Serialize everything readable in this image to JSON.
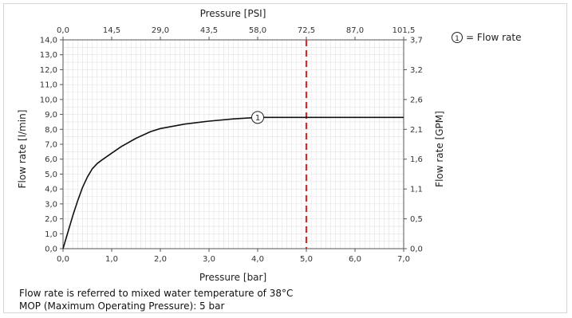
{
  "chart_data": {
    "type": "line",
    "xlabel": "Pressure [bar]",
    "x2label": "Pressure [PSI]",
    "ylabel": "Flow rate [l/min]",
    "y2label": "Flow rate [GPM]",
    "xlim": [
      0,
      7
    ],
    "ylim": [
      0,
      14
    ],
    "x_ticks": [
      "0,0",
      "1,0",
      "2,0",
      "3,0",
      "4,0",
      "5,0",
      "6,0",
      "7,0"
    ],
    "x2_ticks": [
      "0,0",
      "14,5",
      "29,0",
      "43,5",
      "58,0",
      "72,5",
      "87,0",
      "101,5"
    ],
    "y_ticks": [
      "0,0",
      "1,0",
      "2,0",
      "3,0",
      "4,0",
      "5,0",
      "6,0",
      "7,0",
      "8,0",
      "9,0",
      "10,0",
      "11,0",
      "12,0",
      "13,0",
      "14,0"
    ],
    "y2_ticks": [
      {
        "label": "0,0",
        "value": 0
      },
      {
        "label": "0,5",
        "value": 2
      },
      {
        "label": "1,1",
        "value": 4
      },
      {
        "label": "1,6",
        "value": 6
      },
      {
        "label": "2,1",
        "value": 8
      },
      {
        "label": "2,6",
        "value": 10
      },
      {
        "label": "3,2",
        "value": 12
      },
      {
        "label": "3,7",
        "value": 14
      }
    ],
    "series": [
      {
        "marker_label": "1",
        "marker_at": [
          4.0,
          8.8
        ],
        "x": [
          0,
          0.1,
          0.2,
          0.3,
          0.4,
          0.5,
          0.6,
          0.7,
          0.8,
          1.0,
          1.2,
          1.5,
          1.8,
          2.0,
          2.5,
          3.0,
          3.5,
          4.0,
          4.5,
          5.0,
          5.5,
          6.0,
          6.5,
          7.0
        ],
        "values": [
          0,
          1.1,
          2.2,
          3.2,
          4.1,
          4.8,
          5.35,
          5.7,
          5.95,
          6.4,
          6.85,
          7.4,
          7.85,
          8.05,
          8.35,
          8.55,
          8.7,
          8.8,
          8.8,
          8.8,
          8.8,
          8.8,
          8.8,
          8.8
        ],
        "color": "#111111"
      }
    ],
    "reference_line": {
      "x": 5.0,
      "color": "#d62b2b",
      "style": "dashed"
    },
    "legend": {
      "symbol": "1",
      "text": "= Flow rate",
      "placement": "top-right"
    },
    "grid": true,
    "grid_color": "#e3e3e3"
  },
  "notes": {
    "line1": "Flow rate is referred to mixed water temperature of 38°C",
    "line2": "MOP (Maximum Operating Pressure): 5 bar"
  }
}
